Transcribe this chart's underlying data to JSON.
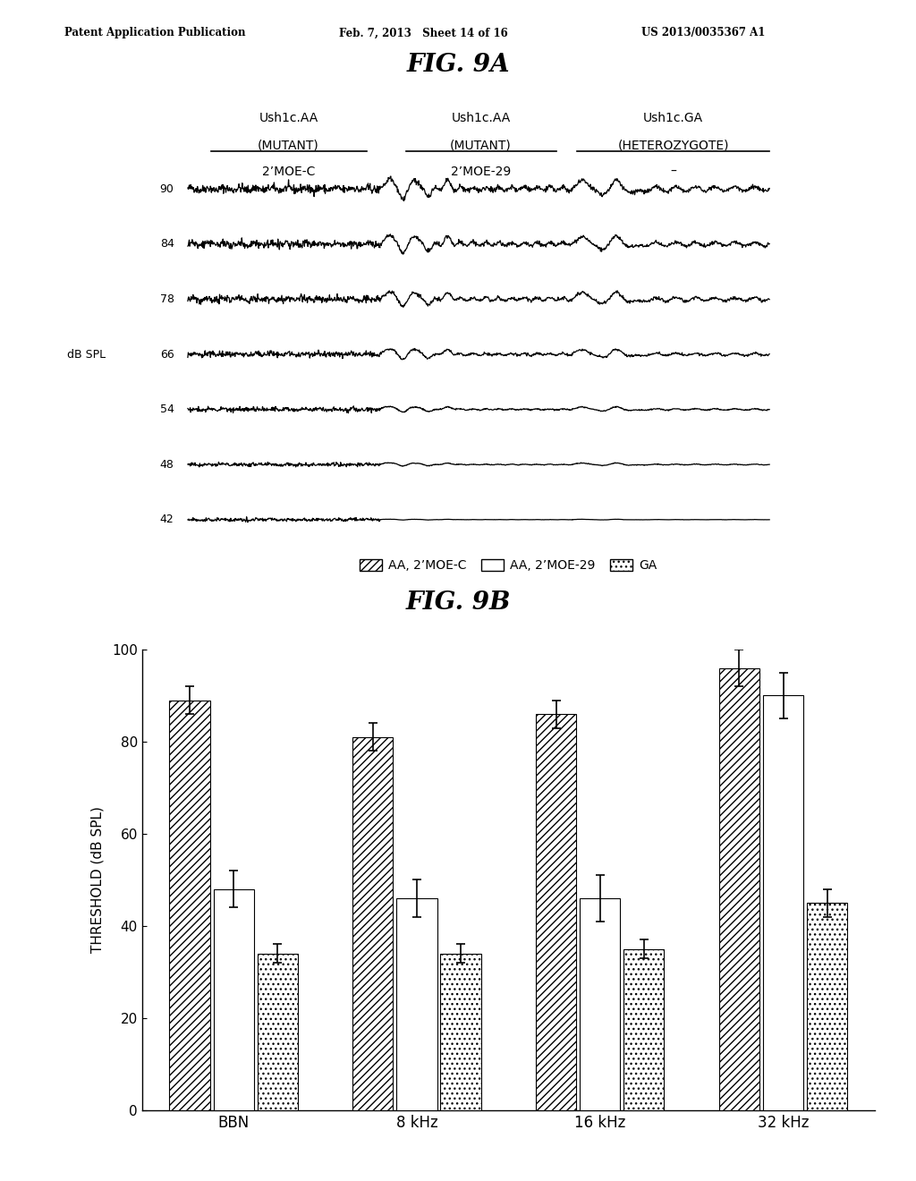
{
  "header_left": "Patent Application Publication",
  "header_mid": "Feb. 7, 2013   Sheet 14 of 16",
  "header_right": "US 2013/0035367 A1",
  "fig9a_title": "FIG. 9A",
  "fig9b_title": "FIG. 9B",
  "col1_label1": "Ush1c.AA",
  "col1_label2": "(MUTANT)",
  "col1_label3": "2’MOE-C",
  "col2_label1": "Ush1c.AA",
  "col2_label2": "(MUTANT)",
  "col2_label3": "2’MOE-29",
  "col3_label1": "Ush1c.GA",
  "col3_label2": "(HETEROZYGOTE)",
  "col3_label3": "–",
  "db_spl_label": "dB SPL",
  "db_levels": [
    90,
    84,
    78,
    66,
    54,
    48,
    42
  ],
  "ylabel": "THRESHOLD (dB SPL)",
  "xlabel_categories": [
    "BBN",
    "8 kHz",
    "16 kHz",
    "32 kHz"
  ],
  "legend_labels": [
    "AA, 2’MOE-C",
    "AA, 2’MOE-29",
    "GA"
  ],
  "bar_data": {
    "AA_2MOEC": [
      89,
      81,
      86,
      96
    ],
    "AA_2MOE29": [
      48,
      46,
      46,
      90
    ],
    "GA": [
      34,
      34,
      35,
      45
    ]
  },
  "error_bars": {
    "AA_2MOEC": [
      3,
      3,
      3,
      4
    ],
    "AA_2MOE29": [
      4,
      4,
      5,
      5
    ],
    "GA": [
      2,
      2,
      2,
      3
    ]
  },
  "ylim_bar": [
    0,
    100
  ],
  "yticks_bar": [
    0,
    20,
    40,
    60,
    80,
    100
  ]
}
